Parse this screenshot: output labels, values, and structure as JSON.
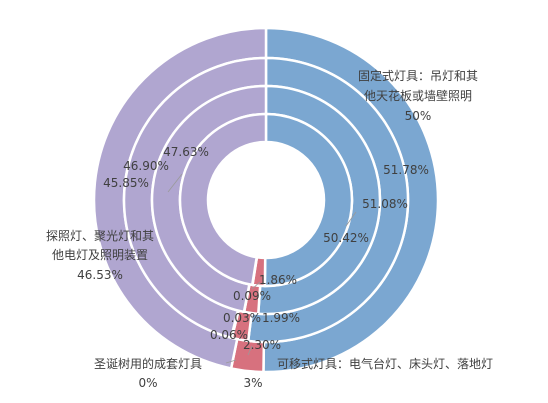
{
  "chart_data": {
    "type": "donut",
    "categories": [
      "固定式灯具：吊灯和其他天花板或墙壁照明",
      "可移式灯具：电气台灯、床头灯、落地灯",
      "圣诞树用的成套灯具",
      "探照灯、聚光灯和其他电灯及照明装置"
    ],
    "colors": [
      "#7BA7D1",
      "#D7717E",
      "#E8E8F0",
      "#B0A6D0"
    ],
    "series": [
      {
        "values": [
          50.0,
          3.0,
          0.0,
          46.53
        ]
      },
      {
        "values": [
          51.78,
          1.86,
          0.09,
          45.85
        ]
      },
      {
        "values": [
          51.08,
          1.99,
          0.03,
          46.9
        ]
      },
      {
        "values": [
          50.42,
          2.3,
          0.06,
          47.63
        ]
      }
    ],
    "labels": {
      "outer_fixed_name_line1": "固定式灯具：吊灯和其",
      "outer_fixed_name_line2": "他天花板或墙壁照明",
      "outer_fixed_value": "50%",
      "outer_movable_name": "可移式灯具：电气台灯、床头灯、落地灯",
      "outer_movable_value": "3%",
      "outer_xmas_name": "圣诞树用的成套灯具",
      "outer_xmas_value": "0%",
      "outer_search_name_line1": "探照灯、聚光灯和其",
      "outer_search_name_line2": "他电灯及照明装置",
      "outer_search_value": "46.53%",
      "ring2_fixed": "51.78%",
      "ring2_movable": "1.86%",
      "ring2_xmas": "0.09%",
      "ring2_search": "45.85%",
      "ring3_fixed": "51.08%",
      "ring3_movable": "1.99%",
      "ring3_xmas": "0.03%",
      "ring3_search": "46.90%",
      "ring4_fixed": "50.42%",
      "ring4_movable": "2.30%",
      "ring4_xmas": "0.06%",
      "ring4_search": "47.63%"
    }
  }
}
